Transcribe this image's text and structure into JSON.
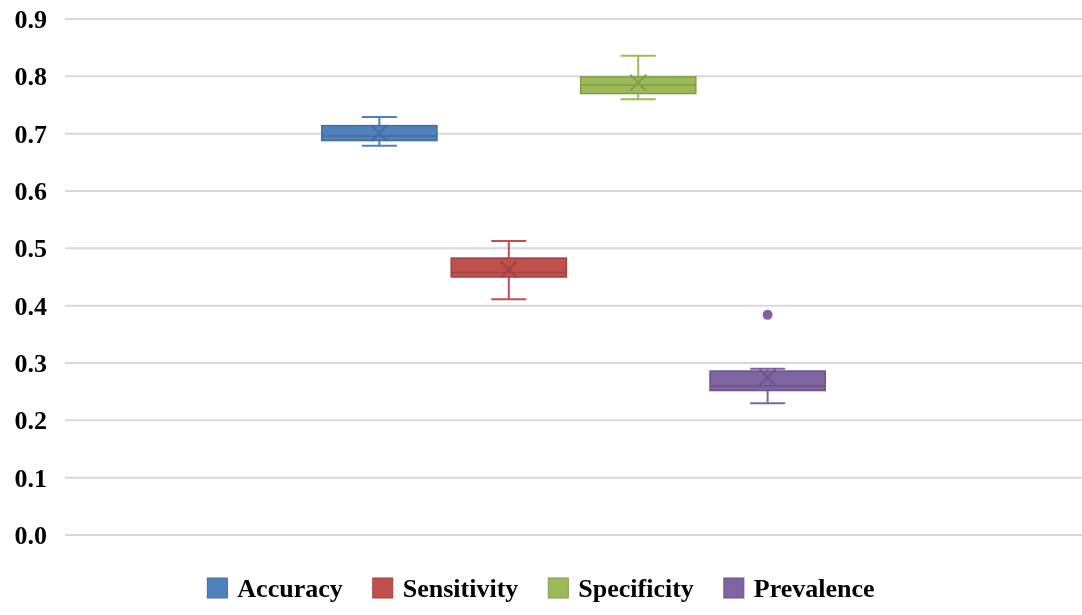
{
  "chart_data": {
    "type": "box",
    "categories": [
      null
    ],
    "ylim": [
      0,
      0.9
    ],
    "yticks": [
      {
        "value": 0,
        "label": "0.0"
      },
      0.1,
      0.2,
      0.3,
      0.4,
      0.5,
      0.6,
      0.7,
      0.8,
      0.9
    ],
    "grid": "y",
    "legend": "bottom",
    "series": [
      {
        "name": "Accuracy",
        "color": "#4f81bd",
        "boxes": [
          {
            "low": 0.679,
            "q1": 0.688,
            "median": 0.696,
            "q3": 0.714,
            "high": 0.729,
            "mean": 0.701
          }
        ]
      },
      {
        "name": "Sensitivity",
        "color": "#c0504d",
        "boxes": [
          {
            "low": 0.411,
            "q1": 0.45,
            "median": 0.458,
            "q3": 0.483,
            "high": 0.513,
            "mean": 0.463
          }
        ]
      },
      {
        "name": "Specificity",
        "color": "#9bbb59",
        "boxes": [
          {
            "low": 0.76,
            "q1": 0.77,
            "median": 0.785,
            "q3": 0.799,
            "high": 0.836,
            "mean": 0.789
          }
        ]
      },
      {
        "name": "Prevalence",
        "color": "#8064a2",
        "boxes": [
          {
            "low": 0.23,
            "q1": 0.252,
            "median": 0.26,
            "q3": 0.286,
            "high": 0.29,
            "mean": 0.275,
            "outliers": [
              0.384
            ]
          }
        ]
      }
    ]
  }
}
